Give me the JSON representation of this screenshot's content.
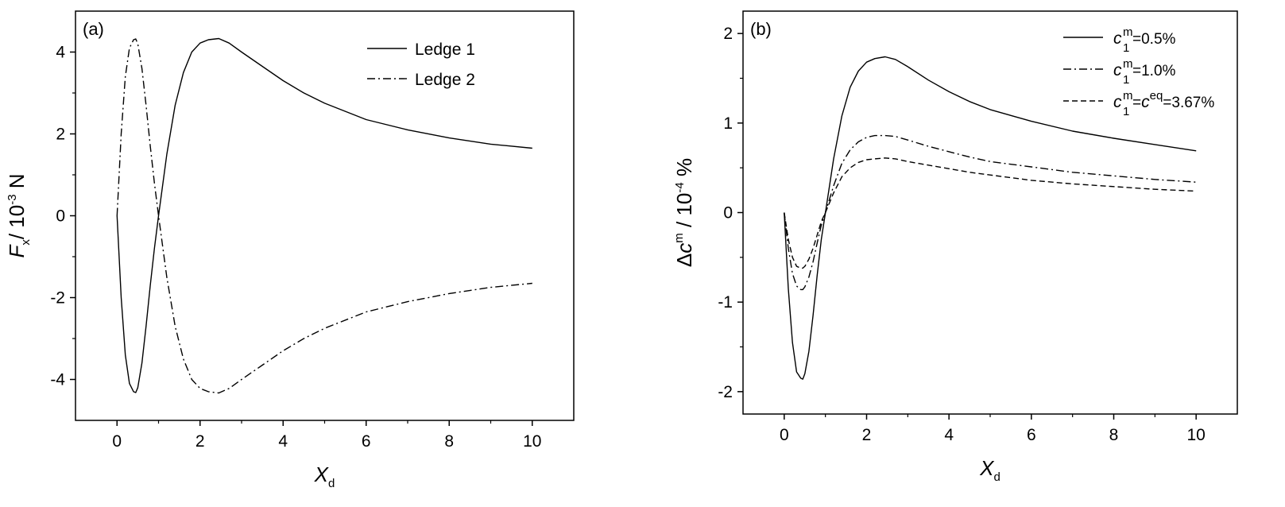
{
  "chart_data": [
    {
      "type": "line",
      "panel_label": "(a)",
      "xlabel": {
        "symbol": "X",
        "subscript": "d"
      },
      "ylabel": {
        "symbol": "F",
        "subscript": "x",
        "unit_prefix": "/ 10",
        "unit_exp": "-3",
        "unit_suffix": " N"
      },
      "xlim": [
        -1,
        11
      ],
      "ylim": [
        -5,
        5
      ],
      "xticks": [
        0,
        2,
        4,
        6,
        8,
        10
      ],
      "yticks": [
        -4,
        -2,
        0,
        2,
        4
      ],
      "xtick_labels": [
        "0",
        "2",
        "4",
        "6",
        "8",
        "10"
      ],
      "ytick_labels": [
        "-4",
        "-2",
        "0",
        "2",
        "4"
      ],
      "grid": false,
      "legend_position": "top-right",
      "series": [
        {
          "name": "Ledge 1",
          "style": "solid",
          "x": [
            0,
            0.1,
            0.2,
            0.3,
            0.4,
            0.45,
            0.5,
            0.6,
            0.7,
            0.8,
            0.9,
            1.0,
            1.2,
            1.4,
            1.6,
            1.8,
            2.0,
            2.2,
            2.45,
            2.7,
            3.0,
            3.5,
            4.0,
            4.5,
            5.0,
            6.0,
            7.0,
            8.0,
            9.0,
            10.0
          ],
          "y": [
            0,
            -2.0,
            -3.4,
            -4.1,
            -4.3,
            -4.32,
            -4.2,
            -3.6,
            -2.7,
            -1.7,
            -0.8,
            0,
            1.5,
            2.7,
            3.5,
            4.0,
            4.22,
            4.3,
            4.33,
            4.22,
            4.0,
            3.65,
            3.3,
            3.0,
            2.75,
            2.35,
            2.1,
            1.9,
            1.75,
            1.65
          ]
        },
        {
          "name": "Ledge 2",
          "style": "dashdot",
          "x": [
            0,
            0.1,
            0.2,
            0.3,
            0.4,
            0.45,
            0.5,
            0.6,
            0.7,
            0.8,
            0.9,
            1.0,
            1.2,
            1.4,
            1.6,
            1.8,
            2.0,
            2.2,
            2.45,
            2.7,
            3.0,
            3.5,
            4.0,
            4.5,
            5.0,
            6.0,
            7.0,
            8.0,
            9.0,
            10.0
          ],
          "y": [
            0,
            2.0,
            3.4,
            4.1,
            4.3,
            4.32,
            4.2,
            3.6,
            2.7,
            1.7,
            0.8,
            0,
            -1.5,
            -2.7,
            -3.5,
            -4.0,
            -4.22,
            -4.3,
            -4.33,
            -4.22,
            -4.0,
            -3.65,
            -3.3,
            -3.0,
            -2.75,
            -2.35,
            -2.1,
            -1.9,
            -1.75,
            -1.65
          ]
        }
      ]
    },
    {
      "type": "line",
      "panel_label": "(b)",
      "xlabel": {
        "symbol": "X",
        "subscript": "d"
      },
      "ylabel": {
        "prefix": "Δ",
        "symbol": "c",
        "superscript": "m",
        "unit_prefix": " / 10",
        "unit_exp": "-4",
        "unit_suffix": " %"
      },
      "xlim": [
        -1,
        11
      ],
      "ylim": [
        -2.25,
        2.25
      ],
      "xticks": [
        0,
        2,
        4,
        6,
        8,
        10
      ],
      "yticks": [
        -2,
        -1,
        0,
        1,
        2
      ],
      "xtick_labels": [
        "0",
        "2",
        "4",
        "6",
        "8",
        "10"
      ],
      "ytick_labels": [
        "-2",
        "-1",
        "0",
        "1",
        "2"
      ],
      "grid": false,
      "legend_position": "top-right",
      "series": [
        {
          "name": "c1m=0.5%",
          "legend": {
            "sym": "c",
            "sup": "m",
            "sub": "1",
            "mid": "",
            "mid_sup": "",
            "tail": "=0.5%"
          },
          "style": "solid",
          "x": [
            0,
            0.1,
            0.2,
            0.3,
            0.4,
            0.45,
            0.5,
            0.6,
            0.7,
            0.8,
            0.9,
            1.0,
            1.2,
            1.4,
            1.6,
            1.8,
            2.0,
            2.2,
            2.45,
            2.7,
            3.0,
            3.5,
            4.0,
            4.5,
            5.0,
            6.0,
            7.0,
            8.0,
            9.0,
            10.0
          ],
          "y": [
            0,
            -0.85,
            -1.45,
            -1.78,
            -1.85,
            -1.86,
            -1.8,
            -1.55,
            -1.15,
            -0.7,
            -0.3,
            0,
            0.6,
            1.08,
            1.4,
            1.58,
            1.68,
            1.72,
            1.74,
            1.71,
            1.63,
            1.48,
            1.35,
            1.24,
            1.15,
            1.02,
            0.91,
            0.83,
            0.76,
            0.69
          ]
        },
        {
          "name": "c1m=1.0%",
          "legend": {
            "sym": "c",
            "sup": "m",
            "sub": "1",
            "mid": "",
            "mid_sup": "",
            "tail": "=1.0%"
          },
          "style": "dashdot",
          "x": [
            0,
            0.1,
            0.2,
            0.3,
            0.4,
            0.45,
            0.5,
            0.6,
            0.7,
            0.8,
            0.9,
            1.0,
            1.2,
            1.4,
            1.6,
            1.8,
            2.0,
            2.2,
            2.45,
            2.7,
            3.0,
            3.5,
            4.0,
            4.5,
            5.0,
            6.0,
            7.0,
            8.0,
            9.0,
            10.0
          ],
          "y": [
            0,
            -0.4,
            -0.68,
            -0.82,
            -0.86,
            -0.86,
            -0.83,
            -0.72,
            -0.55,
            -0.34,
            -0.14,
            0,
            0.3,
            0.55,
            0.7,
            0.79,
            0.84,
            0.86,
            0.86,
            0.85,
            0.81,
            0.74,
            0.68,
            0.62,
            0.57,
            0.51,
            0.45,
            0.41,
            0.37,
            0.34
          ]
        },
        {
          "name": "c1m=ceq=3.67%",
          "legend": {
            "sym": "c",
            "sup": "m",
            "sub": "1",
            "mid": "=c",
            "mid_sup": "eq",
            "tail": "=3.67%"
          },
          "style": "dashed",
          "x": [
            0,
            0.1,
            0.2,
            0.3,
            0.4,
            0.45,
            0.5,
            0.6,
            0.7,
            0.8,
            0.9,
            1.0,
            1.2,
            1.4,
            1.6,
            1.8,
            2.0,
            2.2,
            2.45,
            2.7,
            3.0,
            3.5,
            4.0,
            4.5,
            5.0,
            6.0,
            7.0,
            8.0,
            9.0,
            10.0
          ],
          "y": [
            0,
            -0.3,
            -0.5,
            -0.6,
            -0.62,
            -0.62,
            -0.6,
            -0.52,
            -0.4,
            -0.25,
            -0.1,
            0,
            0.22,
            0.4,
            0.5,
            0.56,
            0.59,
            0.6,
            0.61,
            0.6,
            0.57,
            0.53,
            0.49,
            0.45,
            0.42,
            0.36,
            0.32,
            0.29,
            0.26,
            0.24
          ]
        }
      ]
    }
  ]
}
